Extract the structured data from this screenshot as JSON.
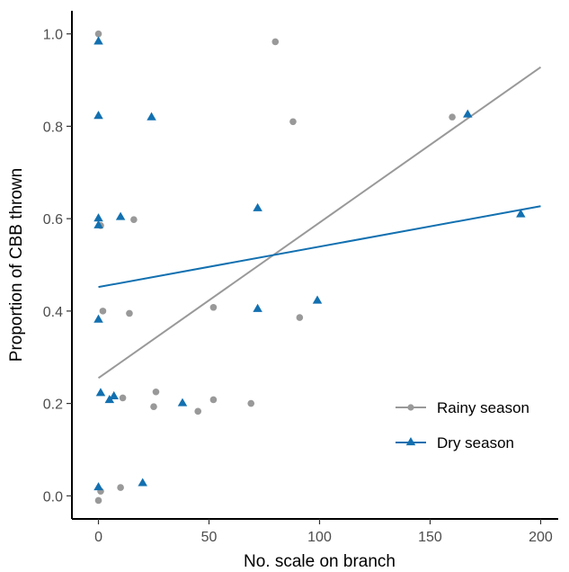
{
  "chart_data": {
    "type": "scatter",
    "xlabel": "No. scale on branch",
    "ylabel": "Proportion of CBB thrown",
    "xlim": [
      -12,
      212
    ],
    "ylim": [
      -0.05,
      1.05
    ],
    "x_ticks": [
      0,
      50,
      100,
      150,
      200
    ],
    "x_tick_labels": [
      "0",
      "50",
      "100",
      "150",
      "200"
    ],
    "y_ticks": [
      0.0,
      0.2,
      0.4,
      0.6,
      0.8,
      1.0
    ],
    "y_tick_labels": [
      "0.0",
      "0.2",
      "0.4",
      "0.6",
      "0.8",
      "1.0"
    ],
    "grid": false,
    "legend_position": "right",
    "series": [
      {
        "name": "Rainy season",
        "color": "#999999",
        "marker": "circle",
        "points": [
          [
            0,
            1.0
          ],
          [
            0,
            -0.01
          ],
          [
            1,
            0.01
          ],
          [
            1,
            0.585
          ],
          [
            2,
            0.4
          ],
          [
            10,
            0.018
          ],
          [
            11,
            0.212
          ],
          [
            14,
            0.395
          ],
          [
            16,
            0.598
          ],
          [
            25,
            0.193
          ],
          [
            26,
            0.225
          ],
          [
            45,
            0.183
          ],
          [
            52,
            0.408
          ],
          [
            52,
            0.208
          ],
          [
            69,
            0.2
          ],
          [
            80,
            0.983
          ],
          [
            88,
            0.81
          ],
          [
            91,
            0.386
          ],
          [
            160,
            0.82
          ]
        ],
        "fit": [
          [
            0,
            0.255
          ],
          [
            200,
            0.928
          ]
        ]
      },
      {
        "name": "Dry season",
        "color": "#1270b0",
        "marker": "triangle",
        "points": [
          [
            0,
            0.983
          ],
          [
            0,
            0.822
          ],
          [
            0,
            0.6
          ],
          [
            0,
            0.585
          ],
          [
            0,
            0.381
          ],
          [
            0,
            0.018
          ],
          [
            1,
            0.222
          ],
          [
            5,
            0.207
          ],
          [
            7,
            0.215
          ],
          [
            10,
            0.603
          ],
          [
            20,
            0.027
          ],
          [
            24,
            0.819
          ],
          [
            38,
            0.2
          ],
          [
            72,
            0.622
          ],
          [
            72,
            0.404
          ],
          [
            99,
            0.422
          ],
          [
            167,
            0.825
          ],
          [
            191,
            0.609
          ]
        ],
        "fit": [
          [
            0,
            0.452
          ],
          [
            200,
            0.627
          ]
        ]
      }
    ]
  }
}
